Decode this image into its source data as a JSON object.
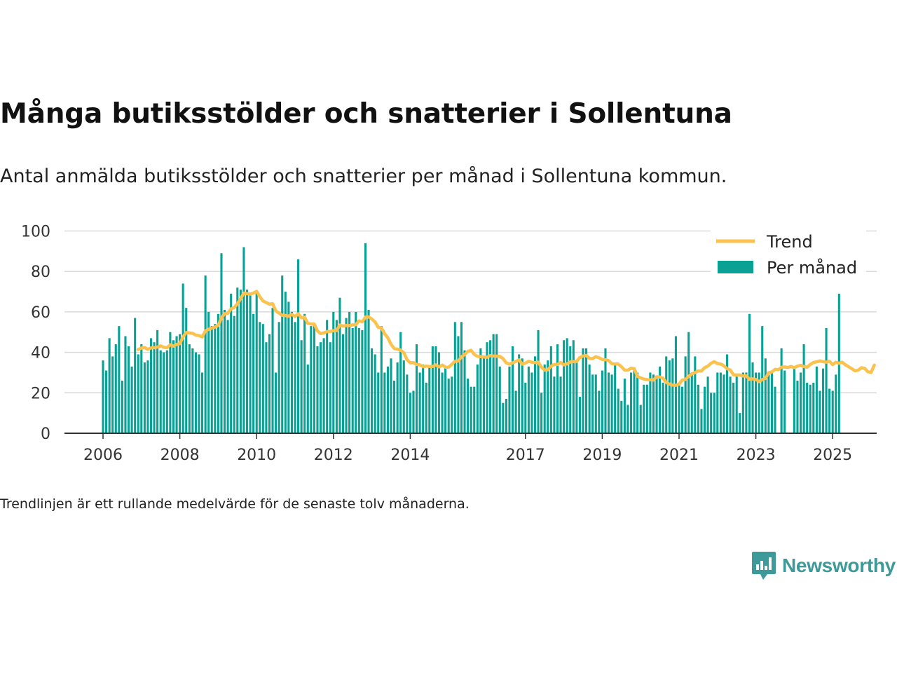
{
  "title": "Många butiksstölder och snatterier i Sollentuna",
  "subtitle": "Antal anmälda butiksstölder och snatterier per månad i Sollentuna kommun.",
  "note": "Trendlinjen är ett rullande medelvärde för de senaste tolv månaderna.",
  "brand": "Newsworthy",
  "colors": {
    "bars": "#0aa195",
    "trend": "#fbc24e",
    "grid": "#d9d9d9",
    "axis": "#333333",
    "brand": "#3d9a98"
  },
  "chart_data": {
    "type": "bar",
    "x_start": "2006-01",
    "x_ticks": [
      "2006",
      "2008",
      "2010",
      "2012",
      "2014",
      "2017",
      "2019",
      "2021",
      "2023",
      "2025"
    ],
    "y_ticks": [
      0,
      20,
      40,
      60,
      80,
      100
    ],
    "ylim": [
      0,
      100
    ],
    "grid": true,
    "legend_position": "top-right",
    "series": [
      {
        "name": "Per månad",
        "type": "bar",
        "values": [
          36,
          31,
          47,
          38,
          44,
          53,
          26,
          48,
          43,
          33,
          57,
          39,
          44,
          35,
          36,
          47,
          45,
          51,
          41,
          40,
          41,
          50,
          46,
          48,
          49,
          74,
          62,
          44,
          42,
          40,
          39,
          30,
          78,
          60,
          53,
          54,
          59,
          89,
          61,
          56,
          69,
          58,
          72,
          71,
          92,
          71,
          69,
          59,
          70,
          55,
          54,
          45,
          49,
          62,
          30,
          55,
          78,
          70,
          65,
          60,
          55,
          86,
          46,
          59,
          34,
          53,
          54,
          43,
          45,
          47,
          56,
          45,
          60,
          56,
          67,
          49,
          57,
          60,
          52,
          60,
          52,
          51,
          94,
          61,
          42,
          39,
          30,
          53,
          30,
          33,
          37,
          26,
          35,
          50,
          36,
          29,
          20,
          21,
          44,
          30,
          34,
          25,
          33,
          43,
          43,
          40,
          30,
          33,
          27,
          28,
          55,
          48,
          55,
          41,
          27,
          23,
          23,
          34,
          42,
          38,
          45,
          46,
          49,
          49,
          33,
          15,
          17,
          33,
          43,
          21,
          39,
          37,
          25,
          33,
          30,
          38,
          51,
          20,
          34,
          36,
          43,
          28,
          44,
          28,
          46,
          47,
          43,
          46,
          36,
          18,
          42,
          42,
          34,
          29,
          29,
          21,
          31,
          42,
          30,
          29,
          35,
          22,
          16,
          27,
          14,
          30,
          32,
          30,
          14,
          24,
          24,
          30,
          29,
          27,
          33,
          25,
          38,
          36,
          37,
          48,
          25,
          23,
          38,
          50,
          30,
          38,
          24,
          12,
          23,
          28,
          20,
          20,
          30,
          30,
          29,
          39,
          28,
          25,
          28,
          10,
          30,
          30,
          59,
          35,
          30,
          30,
          53,
          37,
          29,
          31,
          23,
          0,
          42,
          31,
          0,
          0,
          33,
          26,
          30,
          44,
          25,
          24,
          25,
          33,
          21,
          32,
          52,
          22,
          21,
          29,
          69
        ]
      },
      {
        "name": "Trend",
        "type": "line",
        "values": [
          null,
          null,
          null,
          null,
          null,
          null,
          null,
          null,
          null,
          null,
          null,
          41.4,
          42.1,
          42.4,
          41.5,
          42.2,
          42.3,
          42.6,
          43.2,
          42.5,
          42.3,
          43.7,
          43.1,
          43.9,
          44.3,
          47.6,
          49.8,
          49.6,
          49.4,
          48.5,
          48.3,
          47.6,
          50.6,
          51.4,
          52.0,
          52.5,
          53.3,
          57.1,
          59.1,
          59.3,
          61.5,
          62.2,
          64.0,
          66.6,
          69.3,
          69.0,
          68.8,
          69.3,
          70.2,
          67.5,
          65.4,
          64.6,
          63.8,
          64.1,
          60.5,
          59.4,
          58.3,
          58.2,
          57.9,
          58.8,
          57.7,
          59.1,
          57.1,
          57.4,
          54.3,
          54.0,
          54.0,
          50.6,
          49.3,
          49.6,
          50.3,
          50.3,
          50.7,
          50.8,
          53.5,
          53.0,
          53.3,
          53.2,
          53.6,
          53.7,
          55.6,
          55.1,
          57.4,
          57.5,
          56.5,
          55.0,
          52.4,
          52.1,
          49.2,
          47.2,
          44.0,
          41.9,
          41.6,
          41.1,
          39.8,
          36.4,
          34.8,
          34.9,
          34.0,
          33.8,
          32.9,
          33.2,
          33.0,
          33.0,
          33.8,
          32.8,
          33.7,
          32.7,
          32.6,
          34.1,
          35.6,
          35.7,
          37.7,
          38.9,
          40.5,
          41.0,
          39.0,
          38.0,
          37.9,
          37.7,
          37.6,
          38.4,
          38.2,
          38.1,
          38.0,
          36.9,
          34.8,
          34.2,
          34.8,
          35.5,
          36.3,
          34.2,
          34.7,
          35.6,
          35.1,
          34.9,
          35.1,
          32.7,
          31.2,
          31.4,
          33.1,
          34.0,
          34.0,
          35.0,
          33.8,
          34.3,
          35.2,
          35.4,
          35.5,
          37.4,
          38.2,
          38.5,
          37.0,
          36.9,
          37.9,
          37.3,
          36.5,
          36.4,
          35.9,
          34.4,
          34.2,
          34.2,
          32.9,
          31.2,
          31.2,
          32.2,
          31.9,
          28.1,
          27.4,
          26.8,
          26.5,
          26.4,
          26.3,
          27.9,
          27.8,
          27.2,
          25.1,
          24.3,
          23.8,
          23.7,
          24.3,
          26.3,
          26.6,
          28.1,
          29.4,
          30.0,
          30.8,
          30.8,
          32.4,
          33.2,
          34.6,
          35.4,
          34.5,
          34.2,
          33.4,
          31.9,
          31.3,
          28.9,
          28.8,
          28.8,
          28.3,
          28.4,
          26.7,
          26.9,
          26.6,
          25.5,
          26.5,
          27.1,
          29.9,
          30.3,
          31.6,
          31.4,
          32.6,
          32.8,
          32.5,
          33.0,
          32.4,
          33.2,
          33.6,
          33.0,
          32.6,
          34.0,
          35.0,
          35.3,
          35.8,
          35.4,
          35.1,
          35.6,
          33.9,
          35.1,
          34.6,
          35.1,
          33.8,
          32.9,
          31.9,
          30.8,
          31.2,
          32.4,
          32.1,
          30.4,
          30.1,
          33.7
        ]
      }
    ]
  }
}
